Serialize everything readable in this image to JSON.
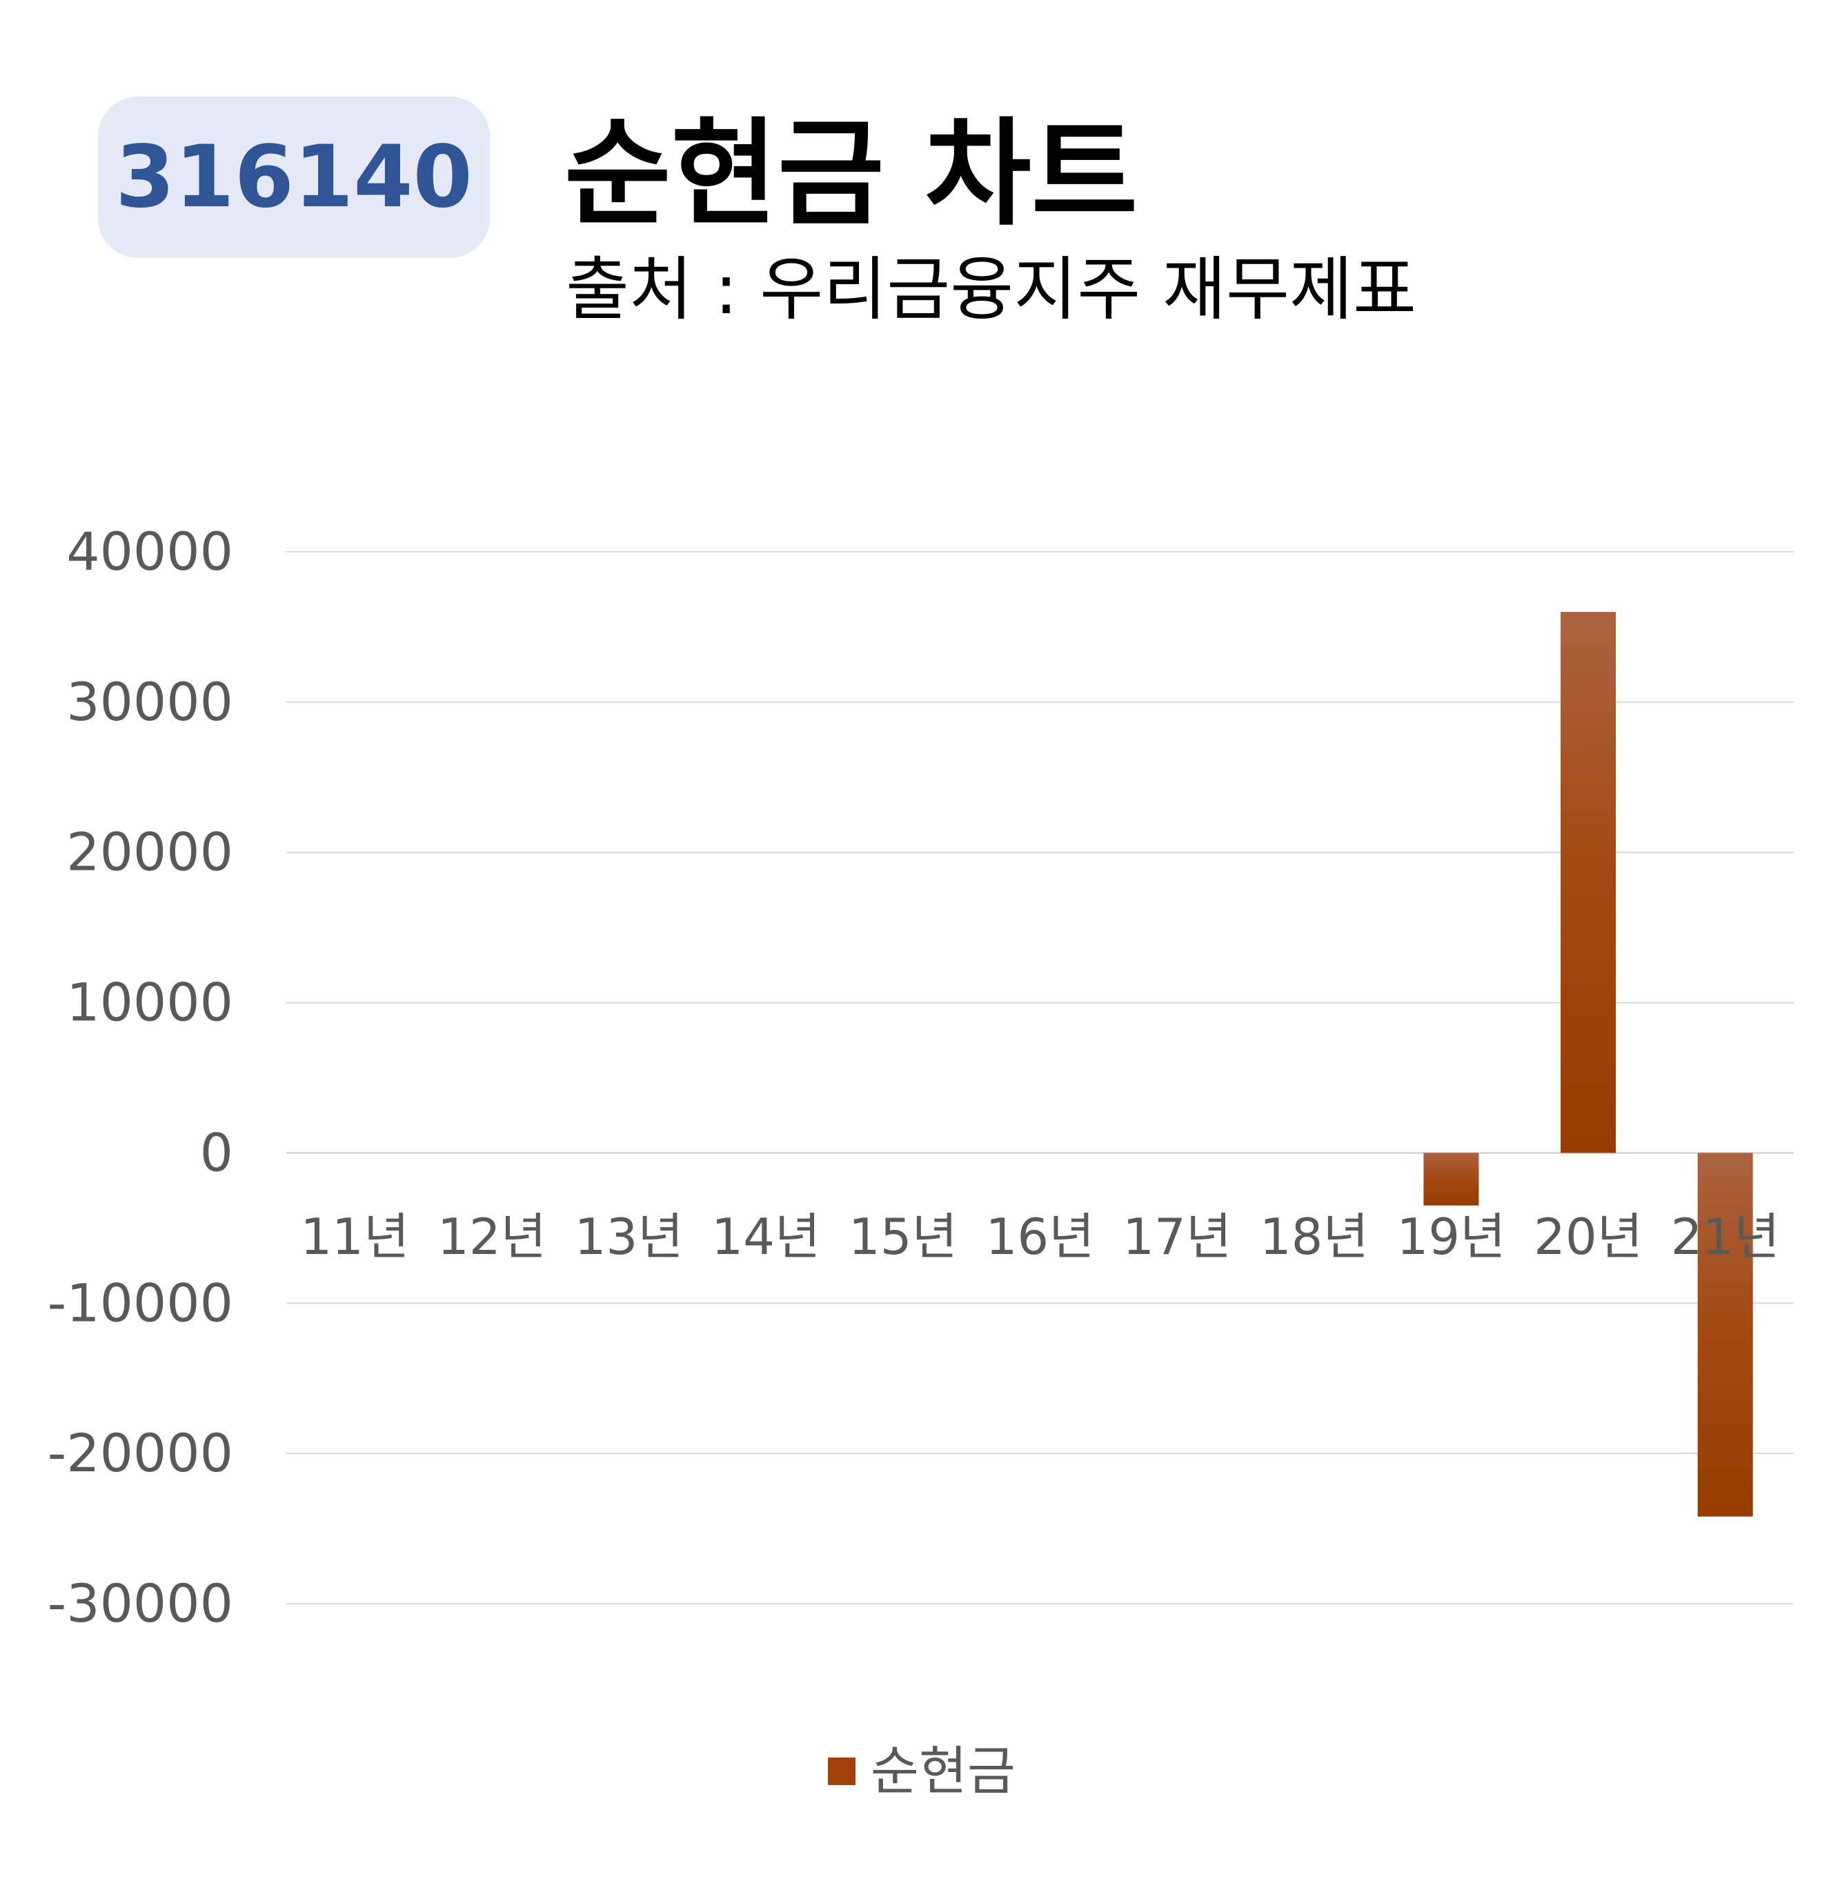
{
  "badge": {
    "code": "316140"
  },
  "header": {
    "title": "순현금 차트",
    "subtitle": "출처 : 우리금융지주 재무제표"
  },
  "colors": {
    "badge_bg": "#e4e9f5",
    "badge_text": "#2f5597",
    "bar_top": "#ab6340",
    "bar_bottom": "#973c00",
    "grid": "#d9d9d9",
    "tick_text": "#595959"
  },
  "chart_data": {
    "type": "bar",
    "title": "순현금 차트",
    "categories": [
      "11년",
      "12년",
      "13년",
      "14년",
      "15년",
      "16년",
      "17년",
      "18년",
      "19년",
      "20년",
      "21년"
    ],
    "series": [
      {
        "name": "순현금",
        "values": [
          0,
          0,
          0,
          0,
          0,
          0,
          0,
          0,
          -3500,
          36000,
          -24200
        ]
      }
    ],
    "yticks": [
      40000,
      30000,
      20000,
      10000,
      0,
      -10000,
      -20000,
      -30000
    ],
    "ylim": [
      -30000,
      40000
    ],
    "grid": true,
    "legend": "bottom"
  }
}
